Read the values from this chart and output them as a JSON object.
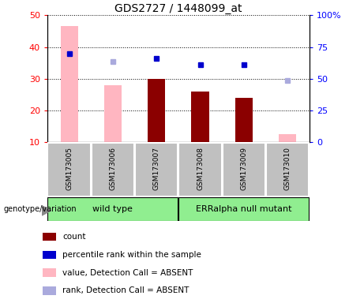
{
  "title": "GDS2727 / 1448099_at",
  "samples": [
    "GSM173005",
    "GSM173006",
    "GSM173007",
    "GSM173008",
    "GSM173009",
    "GSM173010"
  ],
  "bar_values": [
    null,
    null,
    30,
    26,
    24,
    null
  ],
  "bar_absent_values": [
    46.5,
    28,
    null,
    null,
    null,
    12.5
  ],
  "dot_rank_values": [
    38,
    null,
    36.5,
    34.5,
    34.5,
    null
  ],
  "dot_rank_absent_values": [
    null,
    35.5,
    null,
    null,
    null,
    29.5
  ],
  "ylim": [
    10,
    50
  ],
  "yticks_left": [
    10,
    20,
    30,
    40,
    50
  ],
  "right_tick_positions": [
    10,
    20,
    30,
    40,
    50
  ],
  "right_tick_labels": [
    "0",
    "25",
    "50",
    "75",
    "100%"
  ],
  "bar_color_present": "#8B0000",
  "bar_color_absent": "#FFB6C1",
  "dot_color_present": "#0000CD",
  "dot_color_absent": "#AAAADD",
  "xlabel_area_color": "#C0C0C0",
  "group1_label": "wild type",
  "group2_label": "ERRalpha null mutant",
  "group_color": "#90EE90",
  "genotype_label": "genotype/variation",
  "legend_items": [
    {
      "label": "count",
      "color": "#8B0000"
    },
    {
      "label": "percentile rank within the sample",
      "color": "#0000CD"
    },
    {
      "label": "value, Detection Call = ABSENT",
      "color": "#FFB6C1"
    },
    {
      "label": "rank, Detection Call = ABSENT",
      "color": "#AAAADD"
    }
  ]
}
